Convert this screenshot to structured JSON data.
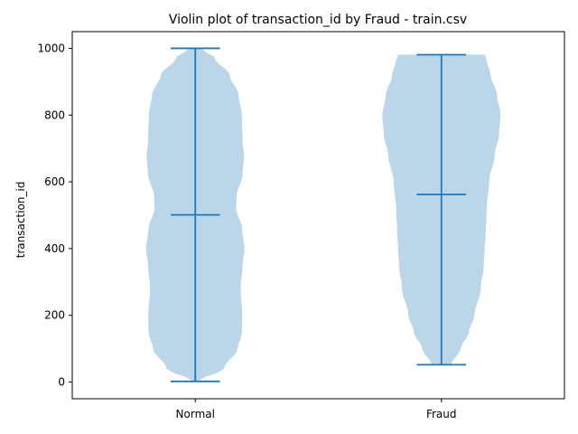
{
  "chart_data": {
    "type": "violin",
    "title": "Violin plot of transaction_id by Fraud - train.csv",
    "xlabel": "",
    "ylabel": "transaction_id",
    "categories": [
      "Normal",
      "Fraud"
    ],
    "ylim": [
      -50,
      1050
    ],
    "yticks": [
      0,
      200,
      400,
      600,
      800,
      1000
    ],
    "grid": false,
    "colors": {
      "body": "#1f77b4",
      "body_alpha": 0.3,
      "lines": "#1f77b4"
    },
    "series": [
      {
        "category": "Normal",
        "min": 2,
        "max": 1000,
        "median": 501,
        "profile": [
          [
            2,
            0.05
          ],
          [
            40,
            0.58
          ],
          [
            100,
            0.86
          ],
          [
            150,
            0.95
          ],
          [
            200,
            0.955
          ],
          [
            280,
            0.92
          ],
          [
            350,
            0.96
          ],
          [
            400,
            1.0
          ],
          [
            460,
            0.95
          ],
          [
            520,
            0.83
          ],
          [
            560,
            0.84
          ],
          [
            620,
            0.96
          ],
          [
            680,
            0.99
          ],
          [
            720,
            0.96
          ],
          [
            800,
            0.945
          ],
          [
            860,
            0.88
          ],
          [
            920,
            0.7
          ],
          [
            970,
            0.4
          ],
          [
            1000,
            0.12
          ]
        ]
      },
      {
        "category": "Fraud",
        "min": 52,
        "max": 981,
        "median": 562,
        "profile": [
          [
            52,
            0.2
          ],
          [
            100,
            0.39
          ],
          [
            150,
            0.56
          ],
          [
            200,
            0.67
          ],
          [
            280,
            0.8
          ],
          [
            350,
            0.86
          ],
          [
            400,
            0.88
          ],
          [
            450,
            0.9
          ],
          [
            520,
            0.92
          ],
          [
            600,
            0.97
          ],
          [
            680,
            1.08
          ],
          [
            740,
            1.17
          ],
          [
            800,
            1.2
          ],
          [
            860,
            1.13
          ],
          [
            920,
            1.0
          ],
          [
            960,
            0.93
          ],
          [
            981,
            0.88
          ]
        ]
      }
    ]
  }
}
